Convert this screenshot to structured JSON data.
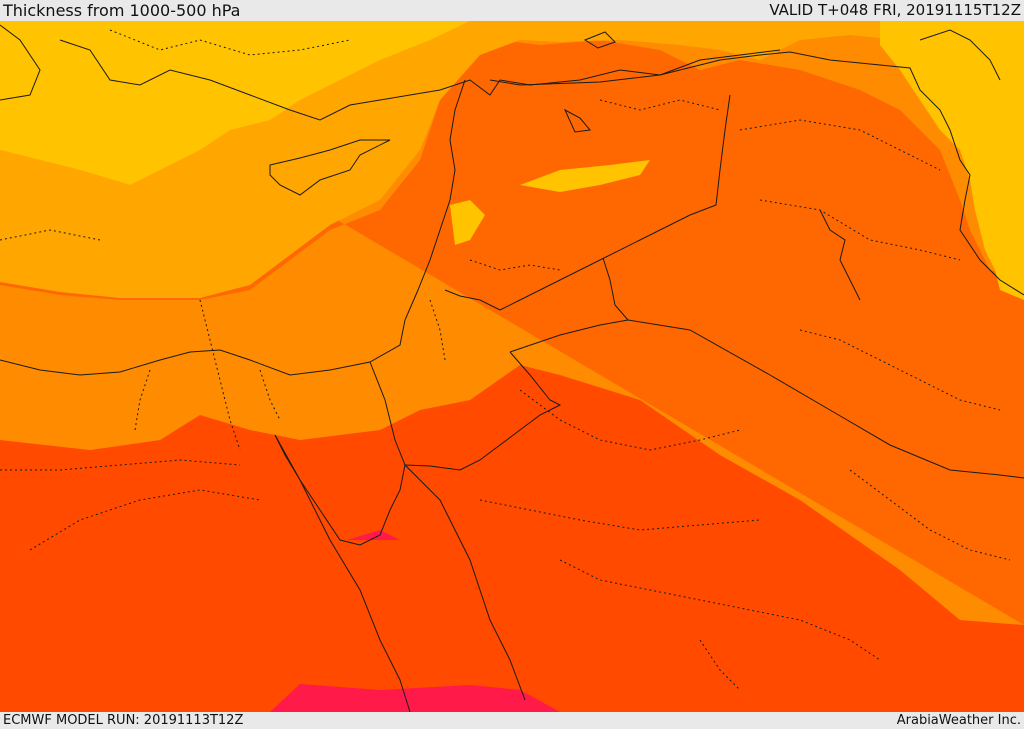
{
  "header": {
    "title": "Thickness from 1000-500 hPa",
    "valid": "VALID T+048 FRI, 20191115T12Z"
  },
  "footer": {
    "model_run": "ECMWF MODEL RUN: 20191113T12Z",
    "credit": "ArabiaWeather Inc."
  },
  "colors": {
    "band_1": "#ffc300",
    "band_2": "#ffa600",
    "band_3": "#ff8b00",
    "band_4": "#ff6800",
    "band_5": "#ff4a00",
    "band_6": "#ff1a4a",
    "lines": "#1a1a1a",
    "bar_background": "#e9e9e9"
  }
}
